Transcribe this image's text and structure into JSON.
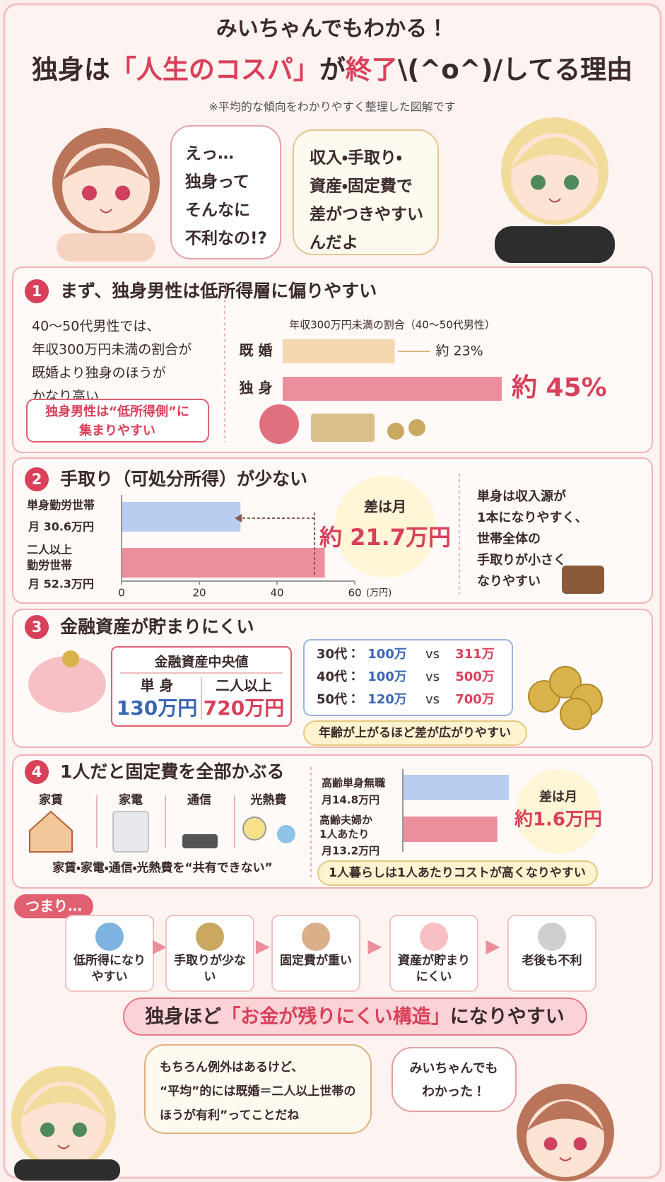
{
  "header": {
    "kicker": "みいちゃんでもわかる！",
    "title": [
      "独身は",
      "「人生のコスパ」",
      "が",
      "終了",
      "\\(^o^)/してる理由"
    ],
    "note": "※平均的な傾向をわかりやすく整理した図解です"
  },
  "intro": {
    "left_bubble": [
      "えっ…",
      "独身って",
      "そんなに",
      "不利なの!?"
    ],
    "right_bubble": [
      "収入・手取り・",
      "資産・固定費で",
      "差がつきやすい",
      "んだよ"
    ]
  },
  "sections": [
    {
      "number": "1",
      "title": "まず、独身男性は低所得層に偏りやすい",
      "text": [
        "40〜50代男性では、",
        "年収300万円未満の割合が",
        "既婚より独身のほうが",
        "かなり高い"
      ],
      "callout": [
        "独身男性は“低所得側”に",
        "集まりやすい"
      ],
      "chart": {
        "title": "年収300万円未満の割合（40〜50代男性）",
        "categories": [
          "既 婚",
          "独 身"
        ],
        "values": [
          23,
          45
        ],
        "value_labels": [
          "約 23%",
          "約 45%"
        ]
      }
    },
    {
      "number": "2",
      "title": "手取り（可処分所得）が少ない",
      "chart": {
        "categories": [
          "単身勤労世帯",
          "二人以上勤労世帯"
        ],
        "values": [
          30.6,
          52.3
        ],
        "value_labels": [
          "月 30.6万円",
          "月 52.3万円"
        ],
        "xlim": [
          0,
          60
        ],
        "xticks": [
          0,
          20,
          40,
          60
        ],
        "unit": "(万円)"
      },
      "diff": [
        "差は月",
        "約 21.7万円"
      ],
      "text": [
        "単身は収入源が",
        "1本になりやすく、",
        "世帯全体の",
        "手取りが小さく",
        "なりやすい"
      ]
    },
    {
      "number": "3",
      "title": "金融資産が貯まりにくい",
      "median": {
        "title": "金融資産中央値",
        "labels": [
          "単 身",
          "二人以上"
        ],
        "values": [
          "130万円",
          "720万円"
        ]
      },
      "by_age": [
        [
          "30代：",
          "100万",
          "vs",
          "311万"
        ],
        [
          "40代：",
          "100万",
          "vs",
          "500万"
        ],
        [
          "50代：",
          "120万",
          "vs",
          "700万"
        ]
      ],
      "footer": "年齢が上がるほど差が広がりやすい"
    },
    {
      "number": "4",
      "title": "1人だと固定費を全部かぶる",
      "items": [
        "家賃",
        "家電",
        "通信",
        "光熱費"
      ],
      "caption": "家賃・家電・通信・光熱費を“共有できない”",
      "chart": {
        "categories": [
          "高齢単身無職",
          "高齢夫婦か1人あたり"
        ],
        "values": [
          14.8,
          13.2
        ],
        "value_labels": [
          "月14.8万円",
          "月13.2万円"
        ]
      },
      "diff": [
        "差は月",
        "約1.6万円"
      ],
      "footer": "1人暮らしは1人あたりコストが高くなりやすい"
    }
  ],
  "summary": {
    "label": "つまり…",
    "steps": [
      "低所得になりやすい",
      "手取りが少ない",
      "固定費が重い",
      "資産が貯まりにくい",
      "老後も不利"
    ],
    "conclusion": [
      "独身ほど",
      "「お金が残りにくい構造」",
      "になりやすい"
    ],
    "left_bubble": [
      "もちろん例外はあるけど、",
      "“平均”的には既婚＝二人以上世帯の",
      "ほうが有利”ってことだね"
    ],
    "right_bubble": [
      "みいちゃんでも",
      "わかった！"
    ]
  }
}
